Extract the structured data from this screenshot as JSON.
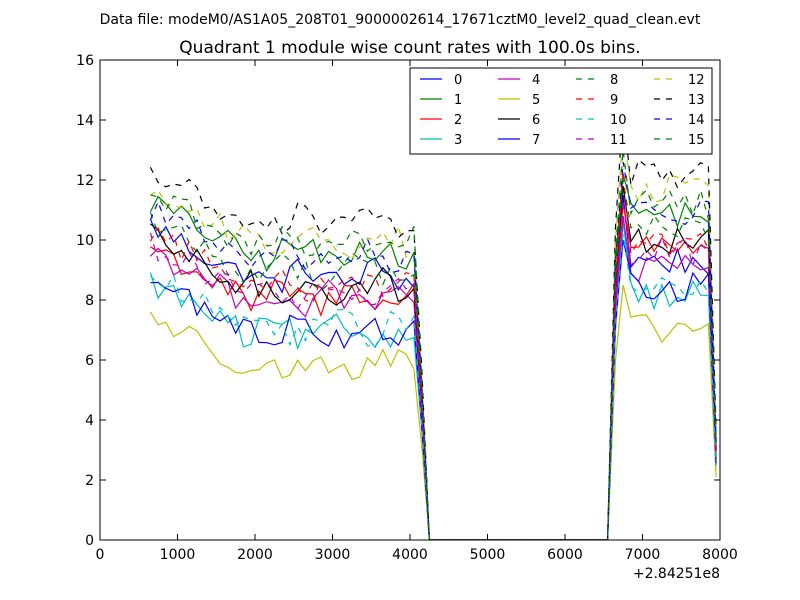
{
  "chart_data": {
    "type": "line",
    "suptitle": "Data file: modeM0/AS1A05_208T01_9000002614_17671cztM0_level2_quad_clean.evt",
    "title": "Quadrant 1 module wise count rates with 100.0s bins.",
    "xlabel": "",
    "ylabel": "",
    "x_offset_label": "+2.84251e8",
    "xlim": [
      0,
      8000
    ],
    "ylim": [
      0,
      16
    ],
    "xticks": [
      0,
      1000,
      2000,
      3000,
      4000,
      5000,
      6000,
      7000,
      8000
    ],
    "yticks": [
      0,
      2,
      4,
      6,
      8,
      10,
      12,
      14,
      16
    ],
    "xtick_labels": [
      "0",
      "1000",
      "2000",
      "3000",
      "4000",
      "5000",
      "6000",
      "7000",
      "8000"
    ],
    "ytick_labels": [
      "0",
      "2",
      "4",
      "6",
      "8",
      "10",
      "12",
      "14",
      "16"
    ],
    "grid": false,
    "legend_position": "top-right",
    "legend_columns": 4,
    "seg1_x": [
      650,
      750,
      850,
      950,
      1050,
      1150,
      1250,
      1350,
      1450,
      1550,
      1650,
      1750,
      1850,
      1950,
      2050,
      2150,
      2250,
      2350,
      2450,
      2550,
      2650,
      2750,
      2850,
      2950,
      3050,
      3150,
      3250,
      3350,
      3450,
      3550,
      3650,
      3750,
      3850,
      3950,
      4050,
      4150,
      4250
    ],
    "seg2_x": [
      6550,
      6650,
      6750,
      6850,
      6950,
      7050,
      7150,
      7250,
      7350,
      7450,
      7550,
      7650,
      7750,
      7850,
      7950
    ],
    "gap_value": 0,
    "series": [
      {
        "name": "0",
        "color": "#0000ff",
        "dash": "solid",
        "level1": 8.8,
        "level2": 9.3,
        "peak": 11.5
      },
      {
        "name": "1",
        "color": "#008000",
        "dash": "solid",
        "level1": 9.6,
        "level2": 10.9,
        "peak": 12.2
      },
      {
        "name": "2",
        "color": "#ff0000",
        "dash": "solid",
        "level1": 8.1,
        "level2": 9.9,
        "peak": 11.2
      },
      {
        "name": "3",
        "color": "#00bfbf",
        "dash": "solid",
        "level1": 6.9,
        "level2": 8.2,
        "peak": 10.6
      },
      {
        "name": "4",
        "color": "#bf00bf",
        "dash": "solid",
        "level1": 8.0,
        "level2": 9.0,
        "peak": 10.8
      },
      {
        "name": "5",
        "color": "#bfbf00",
        "dash": "solid",
        "level1": 5.8,
        "level2": 7.0,
        "peak": 8.5
      },
      {
        "name": "6",
        "color": "#000000",
        "dash": "solid",
        "level1": 8.4,
        "level2": 10.0,
        "peak": 11.8
      },
      {
        "name": "7",
        "color": "#0000ff",
        "dash": "solid",
        "level1": 7.0,
        "level2": 8.4,
        "peak": 10.0
      },
      {
        "name": "8",
        "color": "#008000",
        "dash": "dashed",
        "level1": 9.0,
        "level2": 10.4,
        "peak": 12.0
      },
      {
        "name": "9",
        "color": "#ff0000",
        "dash": "dashed",
        "level1": 8.6,
        "level2": 10.0,
        "peak": 12.3
      },
      {
        "name": "10",
        "color": "#00bfbf",
        "dash": "dashed",
        "level1": 7.1,
        "level2": 8.4,
        "peak": 10.2
      },
      {
        "name": "11",
        "color": "#bf00bf",
        "dash": "dashed",
        "level1": 8.2,
        "level2": 9.6,
        "peak": 11.3
      },
      {
        "name": "12",
        "color": "#bfbf00",
        "dash": "dashed",
        "level1": 10.0,
        "level2": 11.7,
        "peak": 13.6
      },
      {
        "name": "13",
        "color": "#000000",
        "dash": "dashed",
        "level1": 10.6,
        "level2": 12.2,
        "peak": 14.4
      },
      {
        "name": "14",
        "color": "#0000ff",
        "dash": "dashed",
        "level1": 9.4,
        "level2": 10.9,
        "peak": 12.6
      },
      {
        "name": "15",
        "color": "#008000",
        "dash": "dashed",
        "level1": 9.9,
        "level2": 11.2,
        "peak": 13.0
      }
    ]
  }
}
